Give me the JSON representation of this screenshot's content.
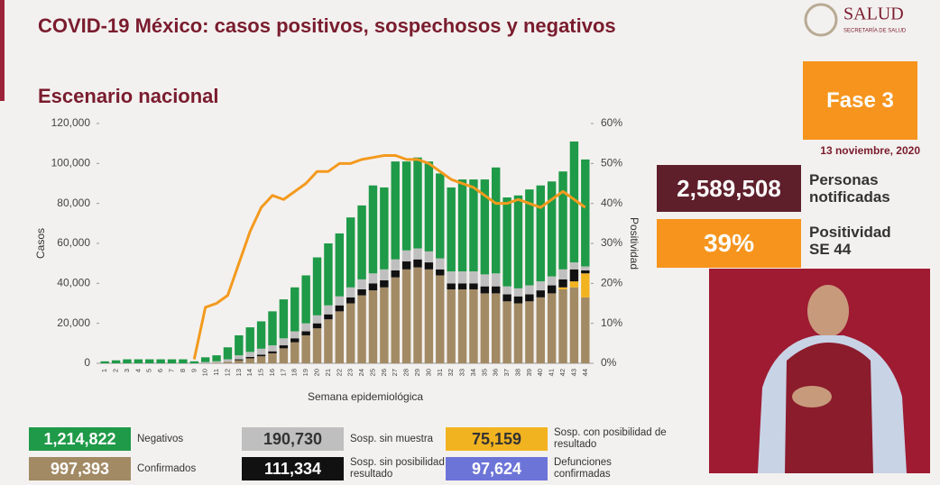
{
  "header": {
    "title": "COVID-19 México: casos positivos, sospechosos y negativos",
    "subtitle": "Escenario nacional",
    "logo": "SALUD",
    "logo_sub": "SECRETARÍA DE SALUD"
  },
  "panel": {
    "phase": "Fase 3",
    "date": "13 noviembre, 2020",
    "notified_value": "2,589,508",
    "notified_label": "Personas notificadas",
    "positivity_value": "39%",
    "positivity_label": "Positividad SE 44"
  },
  "deaths": {
    "label": "Defunciones confirmadas",
    "total": "97,624",
    "color": "#6d74d8"
  },
  "chart_data": {
    "type": "bar",
    "stacked": true,
    "x_label": "Semana epidemiológica",
    "y_label": "Casos",
    "y2_label": "Positividad",
    "categories": [
      "1",
      "2",
      "3",
      "4",
      "5",
      "6",
      "7",
      "8",
      "9",
      "10",
      "11",
      "12",
      "13",
      "14",
      "15",
      "16",
      "17",
      "18",
      "19",
      "20",
      "21",
      "22",
      "23",
      "24",
      "25",
      "26",
      "27",
      "28",
      "29",
      "30",
      "31",
      "32",
      "33",
      "34",
      "35",
      "36",
      "37",
      "38",
      "39",
      "40",
      "41",
      "42",
      "43",
      "44"
    ],
    "ylim": [
      0,
      120000
    ],
    "yticks": [
      0,
      {
        "value": 20000,
        "label": "20,000"
      },
      {
        "value": 40000,
        "label": "40,000"
      },
      {
        "value": 60000,
        "label": "60,000"
      },
      {
        "value": 80000,
        "label": "80,000"
      },
      {
        "value": 100000,
        "label": "100,000"
      },
      {
        "value": 120000,
        "label": "120,000"
      }
    ],
    "y2lim": [
      0,
      60
    ],
    "y2ticks": [
      {
        "value": 0,
        "label": "0%"
      },
      {
        "value": 10,
        "label": "10%"
      },
      {
        "value": 20,
        "label": "20%"
      },
      {
        "value": 30,
        "label": "30%"
      },
      {
        "value": 40,
        "label": "40%"
      },
      {
        "value": 50,
        "label": "50%"
      },
      {
        "value": 60,
        "label": "60%"
      }
    ],
    "series": [
      {
        "name": "Confirmados",
        "color": "#a28a65",
        "total": "997,393",
        "values": [
          0,
          0,
          0,
          0,
          0,
          0,
          0,
          0,
          0,
          100,
          300,
          800,
          1500,
          2500,
          3500,
          5000,
          7500,
          10500,
          14000,
          17500,
          22000,
          26000,
          30000,
          34000,
          36500,
          38000,
          43000,
          47000,
          48000,
          47000,
          44000,
          37000,
          37000,
          37000,
          35000,
          35000,
          31000,
          30000,
          31000,
          33000,
          35000,
          37000,
          38000,
          33000
        ]
      },
      {
        "name": "Sosp. con posibilidad de resultado",
        "color": "#f2b320",
        "total": "75,159",
        "values": [
          0,
          0,
          0,
          0,
          0,
          0,
          0,
          0,
          0,
          0,
          0,
          0,
          0,
          0,
          0,
          0,
          0,
          0,
          0,
          0,
          0,
          0,
          0,
          0,
          0,
          0,
          0,
          0,
          0,
          0,
          0,
          0,
          0,
          0,
          0,
          0,
          0,
          0,
          0,
          0,
          0,
          1000,
          3000,
          12000
        ]
      },
      {
        "name": "Sosp. sin posibilidad de resultado",
        "color": "#111111",
        "total": "111,334",
        "values": [
          0,
          0,
          0,
          0,
          0,
          0,
          0,
          0,
          0,
          0,
          0,
          0,
          500,
          700,
          800,
          1000,
          1500,
          2000,
          2000,
          2500,
          2500,
          3000,
          3000,
          3000,
          3500,
          3500,
          3500,
          4000,
          4000,
          3500,
          3000,
          3000,
          3000,
          3000,
          3500,
          3500,
          3500,
          3500,
          3500,
          3500,
          4000,
          4000,
          6000,
          1500
        ]
      },
      {
        "name": "Sosp. sin muestra",
        "color": "#bfbfbf",
        "total": "190,730",
        "values": [
          0,
          0,
          0,
          0,
          0,
          0,
          0,
          0,
          0,
          500,
          700,
          1200,
          2000,
          2500,
          3000,
          3000,
          3500,
          3500,
          4000,
          4000,
          4500,
          4500,
          5000,
          5000,
          5000,
          5500,
          5500,
          5500,
          5500,
          5500,
          5500,
          6000,
          6000,
          6000,
          6000,
          6500,
          4000,
          4000,
          4500,
          4500,
          4500,
          5000,
          3500,
          2000
        ]
      },
      {
        "name": "Negativos",
        "color": "#1f9a48",
        "total": "1,214,822",
        "values": [
          1000,
          1500,
          2000,
          2000,
          2000,
          2000,
          2000,
          2000,
          1000,
          2400,
          3000,
          6000,
          10000,
          12300,
          13700,
          17000,
          19500,
          22000,
          24000,
          29000,
          31000,
          31500,
          35000,
          37000,
          44000,
          41000,
          49000,
          44500,
          45500,
          45000,
          42500,
          42000,
          46000,
          46000,
          47500,
          53000,
          44500,
          46500,
          48000,
          48000,
          47500,
          49000,
          60500,
          53500
        ]
      },
      {
        "type": "line",
        "axis": "y2",
        "color": "#f39a1e",
        "values": [
          null,
          null,
          null,
          null,
          null,
          null,
          null,
          null,
          1,
          14,
          15,
          17,
          25,
          33,
          39,
          42,
          41,
          43,
          45,
          48,
          48,
          50,
          50,
          51,
          51.5,
          52,
          52,
          51,
          51,
          50,
          48,
          46,
          45,
          44,
          42,
          40,
          40,
          41,
          40,
          39,
          41,
          43,
          41,
          39
        ]
      }
    ]
  }
}
